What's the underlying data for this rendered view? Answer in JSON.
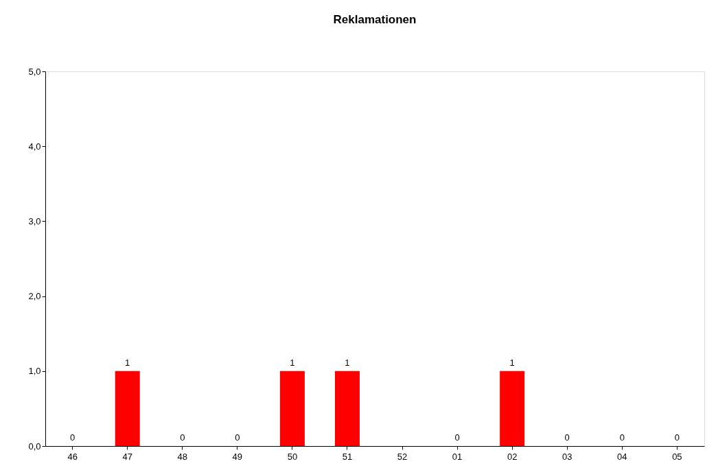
{
  "chart_data": {
    "type": "bar",
    "title": "Reklamationen",
    "categories": [
      "46",
      "47",
      "48",
      "49",
      "50",
      "51",
      "52",
      "01",
      "02",
      "03",
      "04",
      "05"
    ],
    "series": [
      {
        "color": "#ff0000",
        "values": [
          0,
          1,
          0,
          0,
          1,
          1,
          null,
          0,
          1,
          0,
          0,
          0
        ]
      }
    ],
    "ylim": [
      0,
      5
    ],
    "yticks": [
      {
        "value": 0,
        "label": "0,0"
      },
      {
        "value": 1,
        "label": "1,0"
      },
      {
        "value": 2,
        "label": "2,0"
      },
      {
        "value": 3,
        "label": "3,0"
      },
      {
        "value": 4,
        "label": "4,0"
      },
      {
        "value": 5,
        "label": "5,0"
      }
    ],
    "data_labels": true,
    "grid": false
  }
}
